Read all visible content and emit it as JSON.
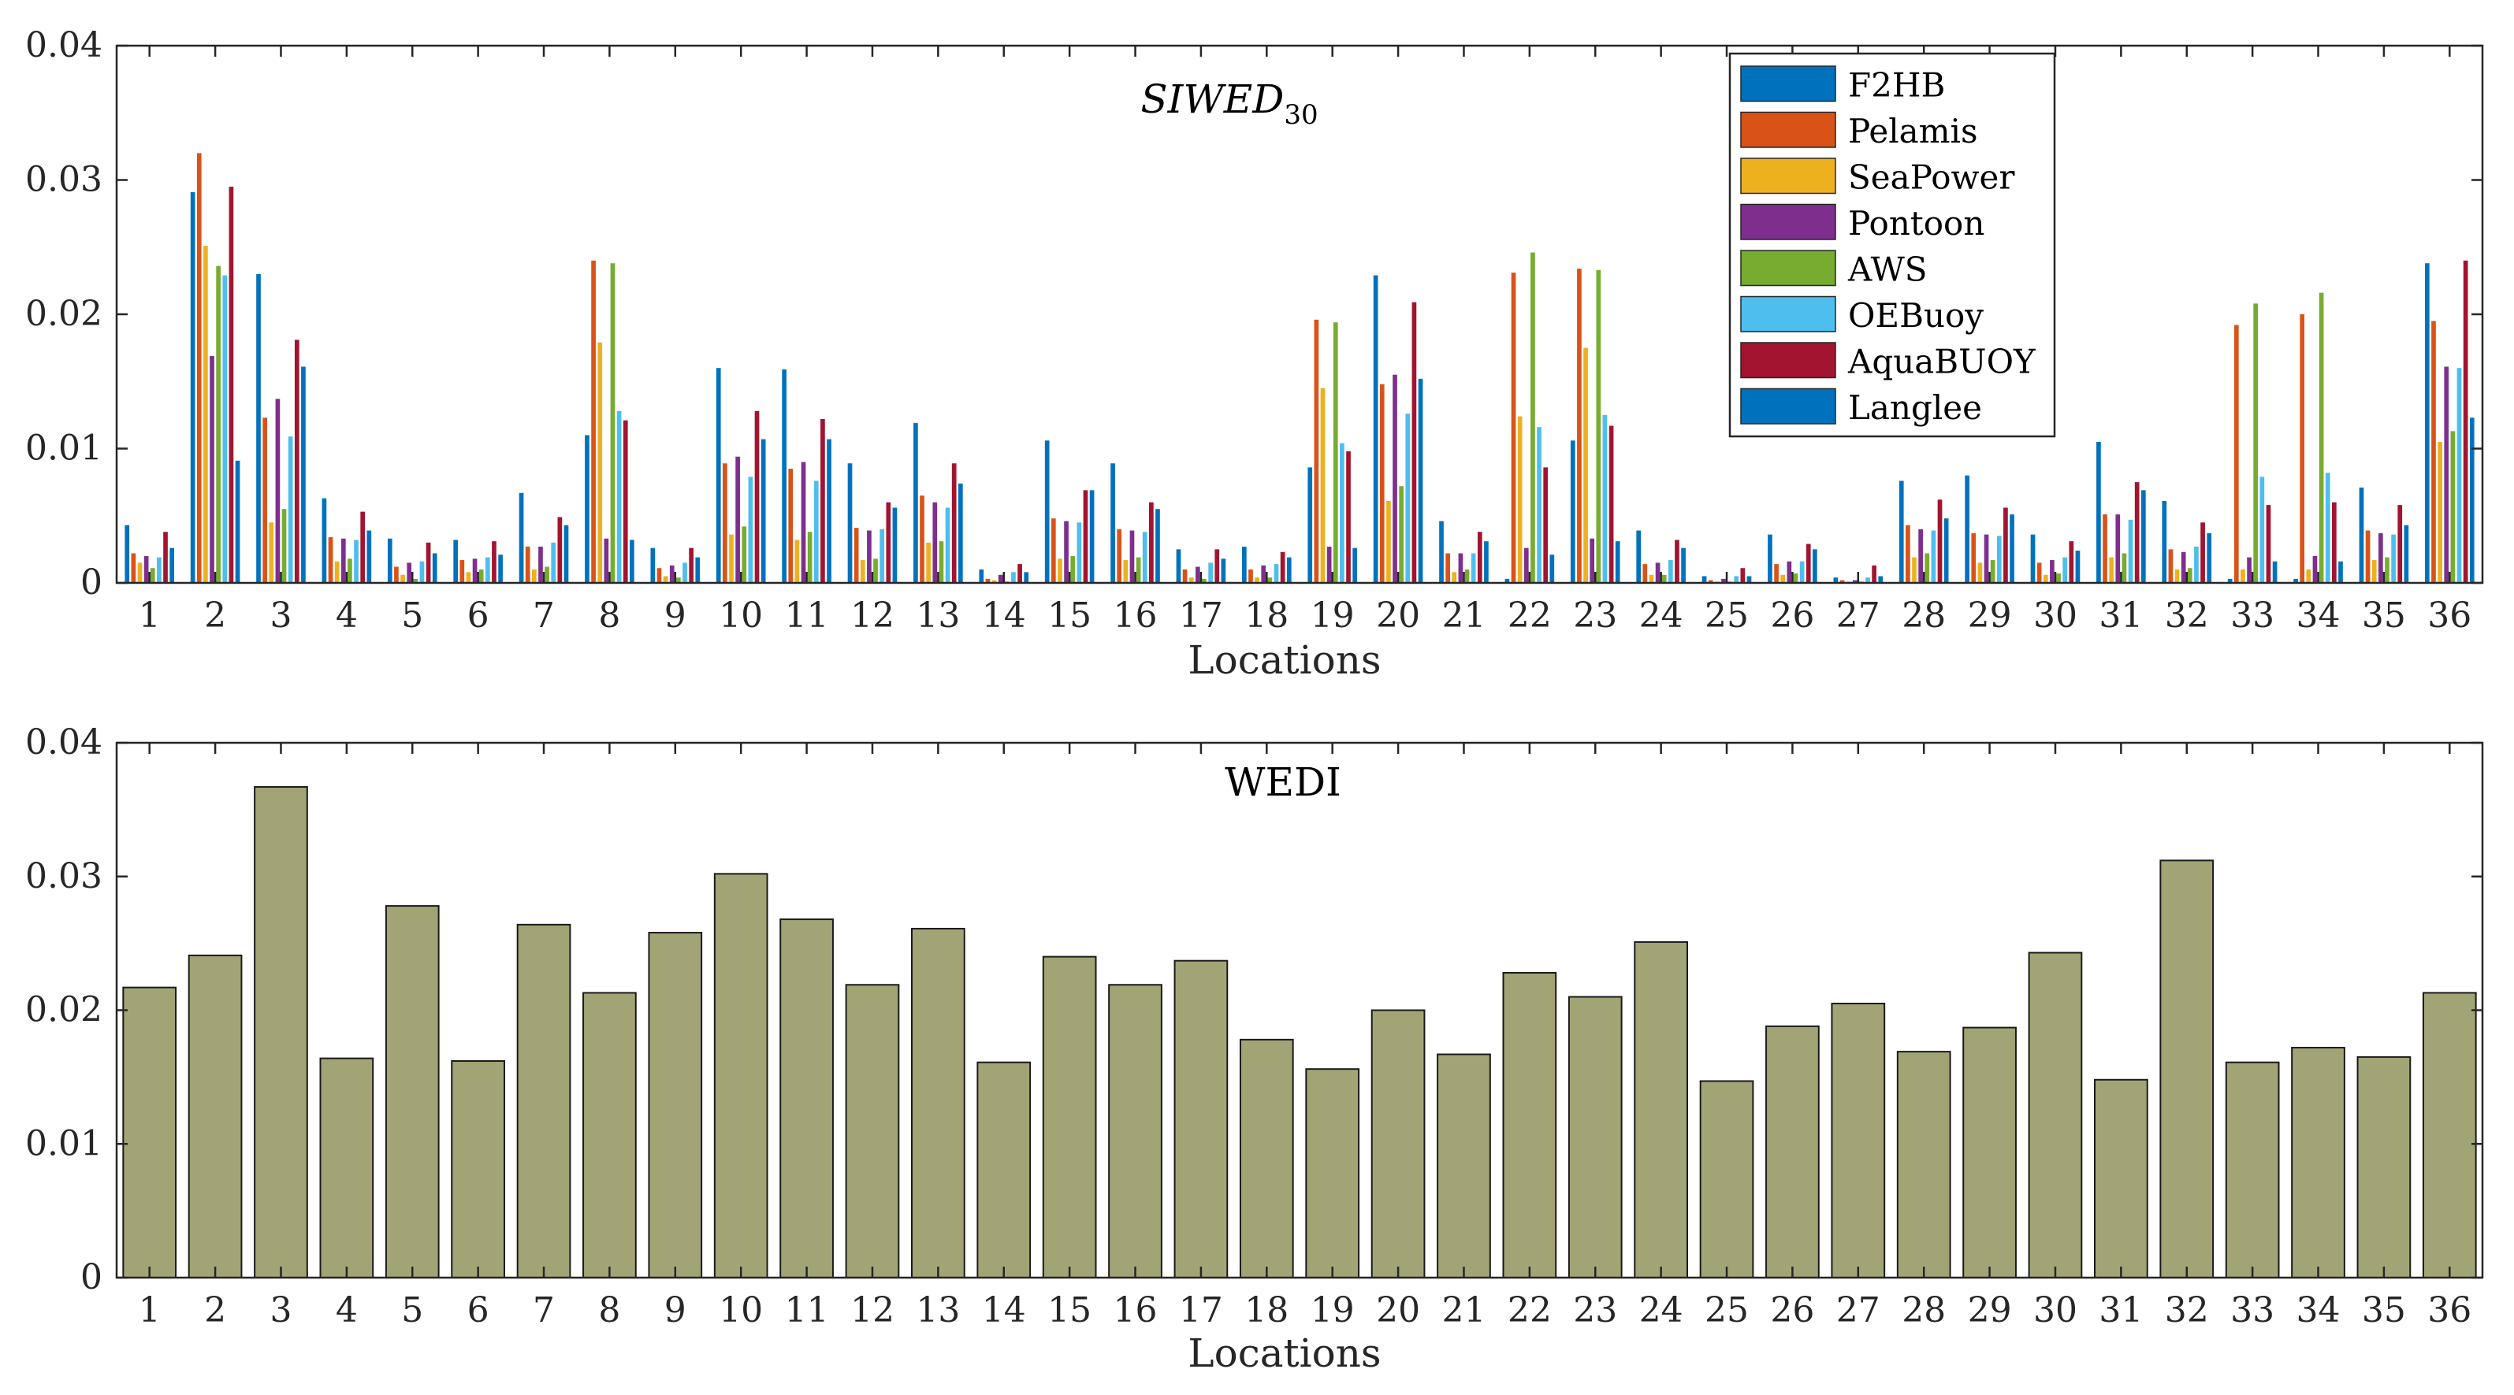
{
  "chart_data": [
    {
      "type": "bar",
      "title": "SIWED",
      "title_subscript": "30",
      "xlabel": "Locations",
      "ylabel": "",
      "ylim": [
        0,
        0.04
      ],
      "yticks": [
        "0",
        "0.01",
        "0.02",
        "0.03",
        "0.04"
      ],
      "categories": [
        "1",
        "2",
        "3",
        "4",
        "5",
        "6",
        "7",
        "8",
        "9",
        "10",
        "11",
        "12",
        "13",
        "14",
        "15",
        "16",
        "17",
        "18",
        "19",
        "20",
        "21",
        "22",
        "23",
        "24",
        "25",
        "26",
        "27",
        "28",
        "29",
        "30",
        "31",
        "32",
        "33",
        "34",
        "35",
        "36"
      ],
      "legend_position": "top-right",
      "series": [
        {
          "name": "F2HB",
          "color": "#0072BD",
          "values": [
            0.0043,
            0.0291,
            0.023,
            0.0063,
            0.0033,
            0.0032,
            0.0067,
            0.011,
            0.0026,
            0.016,
            0.0159,
            0.0089,
            0.0119,
            0.001,
            0.0106,
            0.0089,
            0.0025,
            0.0027,
            0.0086,
            0.0229,
            0.0046,
            0.0003,
            0.0106,
            0.0039,
            0.0005,
            0.0036,
            0.0004,
            0.0076,
            0.008,
            0.0036,
            0.0105,
            0.0061,
            0.0003,
            0.0003,
            0.0071,
            0.0238
          ]
        },
        {
          "name": "Pelamis",
          "color": "#D95319",
          "values": [
            0.0022,
            0.032,
            0.0123,
            0.0034,
            0.0012,
            0.0017,
            0.0027,
            0.024,
            0.0011,
            0.0089,
            0.0085,
            0.0041,
            0.0065,
            0.0003,
            0.0048,
            0.004,
            0.001,
            0.001,
            0.0196,
            0.0148,
            0.0022,
            0.0231,
            0.0234,
            0.0014,
            0.0002,
            0.0014,
            0.0002,
            0.0043,
            0.0037,
            0.0015,
            0.0051,
            0.0025,
            0.0192,
            0.02,
            0.0039,
            0.0195
          ]
        },
        {
          "name": "SeaPower",
          "color": "#EDB120",
          "values": [
            0.0015,
            0.0251,
            0.0045,
            0.0016,
            0.0006,
            0.0008,
            0.001,
            0.0179,
            0.0005,
            0.0036,
            0.0032,
            0.0017,
            0.003,
            0.0002,
            0.0018,
            0.0017,
            0.0004,
            0.0004,
            0.0145,
            0.0061,
            0.0008,
            0.0124,
            0.0175,
            0.0006,
            0.0001,
            0.0006,
            0.0001,
            0.0019,
            0.0015,
            0.0006,
            0.0019,
            0.001,
            0.001,
            0.001,
            0.0017,
            0.0105
          ]
        },
        {
          "name": "Pontoon",
          "color": "#7E2F8E",
          "values": [
            0.002,
            0.0169,
            0.0137,
            0.0033,
            0.0015,
            0.0018,
            0.0027,
            0.0033,
            0.0013,
            0.0094,
            0.009,
            0.0039,
            0.006,
            0.0006,
            0.0046,
            0.0039,
            0.0012,
            0.0013,
            0.0027,
            0.0155,
            0.0022,
            0.0026,
            0.0033,
            0.0015,
            0.0003,
            0.0016,
            0.0002,
            0.004,
            0.0036,
            0.0017,
            0.0051,
            0.0023,
            0.0019,
            0.002,
            0.0037,
            0.0161
          ]
        },
        {
          "name": "AWS",
          "color": "#77AC30",
          "values": [
            0.0011,
            0.0236,
            0.0055,
            0.0018,
            0.0003,
            0.001,
            0.0012,
            0.0238,
            0.0004,
            0.0042,
            0.0038,
            0.0018,
            0.0031,
            0.0001,
            0.002,
            0.0019,
            0.0003,
            0.0004,
            0.0194,
            0.0072,
            0.001,
            0.0246,
            0.0233,
            0.0006,
            0.0001,
            0.0007,
            0.0001,
            0.0022,
            0.0017,
            0.0007,
            0.0022,
            0.0011,
            0.0208,
            0.0216,
            0.0019,
            0.0113
          ]
        },
        {
          "name": "OEBuoy",
          "color": "#4DBEEE",
          "values": [
            0.0019,
            0.0229,
            0.0109,
            0.0032,
            0.0016,
            0.0019,
            0.003,
            0.0128,
            0.0015,
            0.0079,
            0.0076,
            0.004,
            0.0056,
            0.0008,
            0.0045,
            0.0038,
            0.0015,
            0.0014,
            0.0104,
            0.0126,
            0.0022,
            0.0116,
            0.0125,
            0.0017,
            0.0005,
            0.0016,
            0.0004,
            0.0039,
            0.0035,
            0.0019,
            0.0047,
            0.0027,
            0.0079,
            0.0082,
            0.0036,
            0.016
          ]
        },
        {
          "name": "AquaBUOY",
          "color": "#A2142F",
          "values": [
            0.0038,
            0.0295,
            0.0181,
            0.0053,
            0.003,
            0.0031,
            0.0049,
            0.0121,
            0.0026,
            0.0128,
            0.0122,
            0.006,
            0.0089,
            0.0014,
            0.0069,
            0.006,
            0.0025,
            0.0023,
            0.0098,
            0.0209,
            0.0038,
            0.0086,
            0.0117,
            0.0032,
            0.0011,
            0.0029,
            0.0013,
            0.0062,
            0.0056,
            0.0031,
            0.0075,
            0.0045,
            0.0058,
            0.006,
            0.0058,
            0.024
          ]
        },
        {
          "name": "Langlee",
          "color": "#0072BD",
          "values": [
            0.0026,
            0.0091,
            0.0161,
            0.0039,
            0.0022,
            0.0021,
            0.0043,
            0.0032,
            0.0019,
            0.0107,
            0.0107,
            0.0056,
            0.0074,
            0.0008,
            0.0069,
            0.0055,
            0.0018,
            0.0019,
            0.0026,
            0.0152,
            0.0031,
            0.0021,
            0.0031,
            0.0026,
            0.0005,
            0.0025,
            0.0005,
            0.0048,
            0.0051,
            0.0024,
            0.0069,
            0.0037,
            0.0016,
            0.0016,
            0.0043,
            0.0123
          ]
        }
      ]
    },
    {
      "type": "bar",
      "title": "WEDI",
      "xlabel": "Locations",
      "ylabel": "",
      "ylim": [
        0,
        0.04
      ],
      "yticks": [
        "0",
        "0.01",
        "0.02",
        "0.03",
        "0.04"
      ],
      "categories": [
        "1",
        "2",
        "3",
        "4",
        "5",
        "6",
        "7",
        "8",
        "9",
        "10",
        "11",
        "12",
        "13",
        "14",
        "15",
        "16",
        "17",
        "18",
        "19",
        "20",
        "21",
        "22",
        "23",
        "24",
        "25",
        "26",
        "27",
        "28",
        "29",
        "30",
        "31",
        "32",
        "33",
        "34",
        "35",
        "36"
      ],
      "color": "#A3A476",
      "values": [
        0.0217,
        0.0241,
        0.0367,
        0.0164,
        0.0278,
        0.0162,
        0.0264,
        0.0213,
        0.0258,
        0.0302,
        0.0268,
        0.0219,
        0.0261,
        0.0161,
        0.024,
        0.0219,
        0.0237,
        0.0178,
        0.0156,
        0.02,
        0.0167,
        0.0228,
        0.021,
        0.0251,
        0.0147,
        0.0188,
        0.0205,
        0.0169,
        0.0187,
        0.0243,
        0.0148,
        0.0312,
        0.0161,
        0.0172,
        0.0165,
        0.0213
      ]
    }
  ]
}
